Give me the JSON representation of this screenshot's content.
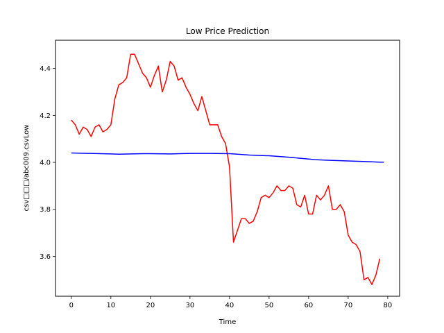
{
  "chart_data": {
    "type": "line",
    "title": "Low Price Prediction",
    "xlabel": "Time",
    "ylabel": "csv□□□/abc009.csvLow",
    "xlim": [
      -4,
      83
    ],
    "ylim": [
      3.43,
      4.52
    ],
    "xticks": [
      0,
      10,
      20,
      30,
      40,
      50,
      60,
      70,
      80
    ],
    "yticks": [
      3.6,
      3.8,
      4.0,
      4.2,
      4.4
    ],
    "xtick_labels": [
      "0",
      "10",
      "20",
      "30",
      "40",
      "50",
      "60",
      "70",
      "80"
    ],
    "ytick_labels": [
      "3.6",
      "3.8",
      "4.0",
      "4.2",
      "4.4"
    ],
    "grid": false,
    "series": [
      {
        "color": "#ff0000",
        "x": [
          0,
          1,
          2,
          3,
          4,
          5,
          6,
          7,
          8,
          9,
          10,
          11,
          12,
          13,
          14,
          15,
          16,
          17,
          18,
          19,
          20,
          21,
          22,
          23,
          24,
          25,
          26,
          27,
          28,
          29,
          30,
          31,
          32,
          33,
          34,
          35,
          36,
          37,
          38,
          39,
          40,
          41,
          42,
          43,
          44,
          45,
          46,
          47,
          48,
          49,
          50,
          51,
          52,
          53,
          54,
          55,
          56,
          57,
          58,
          59,
          60,
          61,
          62,
          63,
          64,
          65,
          66,
          67,
          68,
          69,
          70,
          71,
          72,
          73,
          74,
          75,
          76,
          77,
          78
        ],
        "y": [
          4.18,
          4.16,
          4.12,
          4.15,
          4.14,
          4.11,
          4.15,
          4.16,
          4.13,
          4.14,
          4.16,
          4.27,
          4.33,
          4.34,
          4.36,
          4.46,
          4.46,
          4.42,
          4.38,
          4.36,
          4.32,
          4.37,
          4.41,
          4.3,
          4.35,
          4.43,
          4.41,
          4.35,
          4.36,
          4.32,
          4.29,
          4.25,
          4.22,
          4.28,
          4.22,
          4.16,
          4.16,
          4.16,
          4.11,
          4.08,
          3.98,
          3.66,
          3.71,
          3.76,
          3.76,
          3.74,
          3.75,
          3.79,
          3.85,
          3.86,
          3.85,
          3.87,
          3.9,
          3.88,
          3.88,
          3.9,
          3.89,
          3.82,
          3.81,
          3.86,
          3.78,
          3.78,
          3.86,
          3.84,
          3.86,
          3.9,
          3.8,
          3.8,
          3.82,
          3.79,
          3.69,
          3.66,
          3.65,
          3.62,
          3.5,
          3.51,
          3.48,
          3.52,
          3.59
        ]
      },
      {
        "color": "#0000ff",
        "x": [
          0,
          5,
          10,
          12,
          15,
          18,
          20,
          25,
          30,
          35,
          40,
          42,
          45,
          50,
          55,
          60,
          62,
          65,
          70,
          75,
          78,
          79
        ],
        "y": [
          4.04,
          4.038,
          4.036,
          4.035,
          4.036,
          4.037,
          4.037,
          4.036,
          4.038,
          4.038,
          4.037,
          4.035,
          4.031,
          4.028,
          4.022,
          4.014,
          4.011,
          4.009,
          4.006,
          4.003,
          4.001,
          4.001
        ]
      }
    ]
  }
}
